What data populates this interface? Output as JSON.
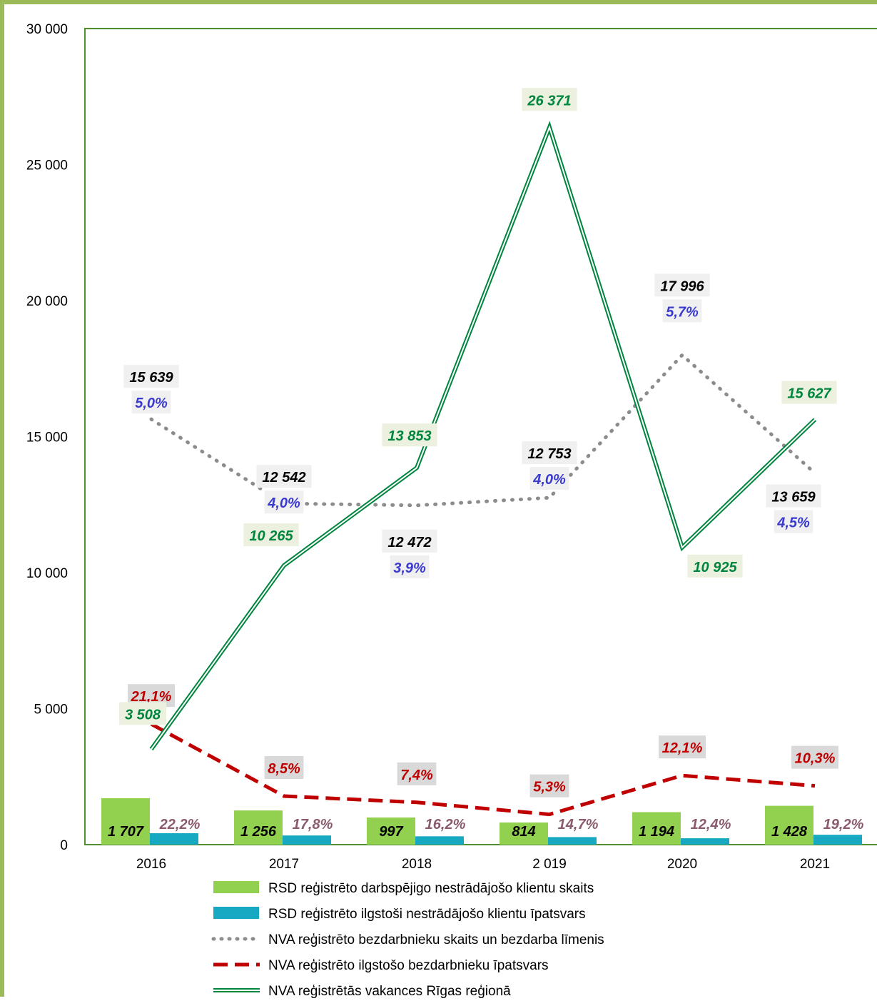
{
  "chart_data": {
    "type": "bar",
    "categories": [
      "2016",
      "2017",
      "2018",
      "2 019",
      "2020",
      "2021"
    ],
    "ylim": [
      0,
      30000
    ],
    "y_ticks": [
      "0",
      "5 000",
      "10 000",
      "15 000",
      "20 000",
      "25 000",
      "30 000"
    ],
    "y_tick_values": [
      0,
      5000,
      10000,
      15000,
      20000,
      25000,
      30000
    ],
    "grid": false,
    "legend_position": "bottom",
    "percent_axis_max": 100,
    "series": [
      {
        "name": "RSD reģistrēto darbspējigo nestrādājošo klientu skaits",
        "kind": "bar",
        "color": "#92d050",
        "values": [
          1707,
          1256,
          997,
          814,
          1194,
          1428
        ],
        "labels": [
          "1 707",
          "1 256",
          "997",
          "814",
          "1 194",
          "1 428"
        ]
      },
      {
        "name": "RSD reģistrēto ilgstoši nestrādājošo klientu īpatsvars",
        "kind": "bar",
        "color": "#17a9c2",
        "values": [
          22.2,
          17.8,
          16.2,
          14.7,
          12.4,
          19.2
        ],
        "labels": [
          "22,2%",
          "17,8%",
          "16,2%",
          "14,7%",
          "12,4%",
          "19,2%"
        ]
      },
      {
        "name": "NVA reģistrēto bezdarbnieku skaits un bezdarba līmenis",
        "kind": "dotted-line",
        "color": "#8c8c8c",
        "values": [
          15639,
          12542,
          12472,
          12753,
          17996,
          13659
        ],
        "labels": [
          "15 639",
          "12 542",
          "12 472",
          "12 753",
          "17 996",
          "13 659"
        ],
        "rate_labels": [
          "5,0%",
          "4,0%",
          "3,9%",
          "4,0%",
          "5,7%",
          "4,5%"
        ]
      },
      {
        "name": "NVA reģistrēto ilgstošo bezdarbnieku  īpatsvars",
        "kind": "dashed-line",
        "color": "#c00000",
        "values": [
          21.1,
          8.5,
          7.4,
          5.3,
          12.1,
          10.3
        ],
        "labels": [
          "21,1%",
          "8,5%",
          "7,4%",
          "5,3%",
          "12,1%",
          "10,3%"
        ]
      },
      {
        "name": "NVA reģistrētās vakances Rīgas reģionā",
        "kind": "double-line",
        "color": "#00853e",
        "values": [
          3508,
          10265,
          13853,
          26371,
          10925,
          15627
        ],
        "labels": [
          "3 508",
          "10 265",
          "13 853",
          "26 371",
          "10 925",
          "15 627"
        ]
      }
    ]
  }
}
